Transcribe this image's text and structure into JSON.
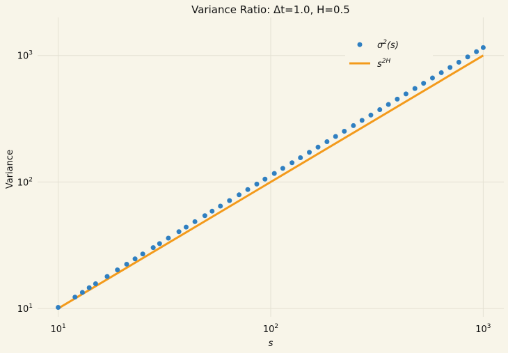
{
  "chart_data": {
    "type": "scatter",
    "title": "Variance Ratio: Δt=1.0, H=0.5",
    "xlabel": "s",
    "ylabel": "Variance",
    "xscale": "log",
    "yscale": "log",
    "xlim": [
      8,
      1250
    ],
    "ylim": [
      8.6,
      2000
    ],
    "grid": true,
    "legend_position": "top-right",
    "x_ticks": [
      {
        "value": 10,
        "base": "10",
        "exp": "1"
      },
      {
        "value": 100,
        "base": "10",
        "exp": "2"
      },
      {
        "value": 1000,
        "base": "10",
        "exp": "3"
      }
    ],
    "y_ticks": [
      {
        "value": 10,
        "base": "10",
        "exp": "1"
      },
      {
        "value": 100,
        "base": "10",
        "exp": "2"
      },
      {
        "value": 1000,
        "base": "10",
        "exp": "3"
      }
    ],
    "series": [
      {
        "name": "σ²(s)",
        "legend_base": "σ",
        "legend_sup": "2",
        "legend_tail": "(s)",
        "kind": "scatter",
        "color": "#2f7fc1",
        "x": [
          10,
          12,
          13,
          14,
          15,
          17,
          19,
          21,
          23,
          25,
          28,
          30,
          33,
          37,
          40,
          44,
          49,
          53,
          58,
          64,
          71,
          78,
          86,
          94,
          104,
          114,
          126,
          138,
          152,
          167,
          184,
          202,
          222,
          245,
          269,
          296,
          326,
          358,
          394,
          433,
          477,
          524,
          577,
          635,
          698,
          768,
          845,
          929,
          1000
        ],
        "y": [
          10.2,
          12.3,
          13.4,
          14.6,
          15.7,
          17.9,
          20.2,
          22.4,
          24.7,
          27,
          30.3,
          32.6,
          36,
          40.5,
          44,
          48.6,
          54.2,
          58.8,
          64.5,
          71.3,
          79.2,
          87.2,
          96.3,
          105.4,
          116.8,
          128.2,
          141.9,
          155.6,
          171.6,
          188.7,
          208.2,
          229,
          252,
          279,
          307,
          338,
          373,
          410,
          452,
          497,
          548,
          603,
          664,
          731,
          804,
          885,
          974,
          1071,
          1155
        ]
      },
      {
        "name": "s²ᴴ",
        "legend_base": "s",
        "legend_sup": "2H",
        "legend_tail": "",
        "kind": "line",
        "color": "#f39a1b",
        "x": [
          10,
          1000
        ],
        "y": [
          10,
          1000
        ]
      }
    ]
  }
}
